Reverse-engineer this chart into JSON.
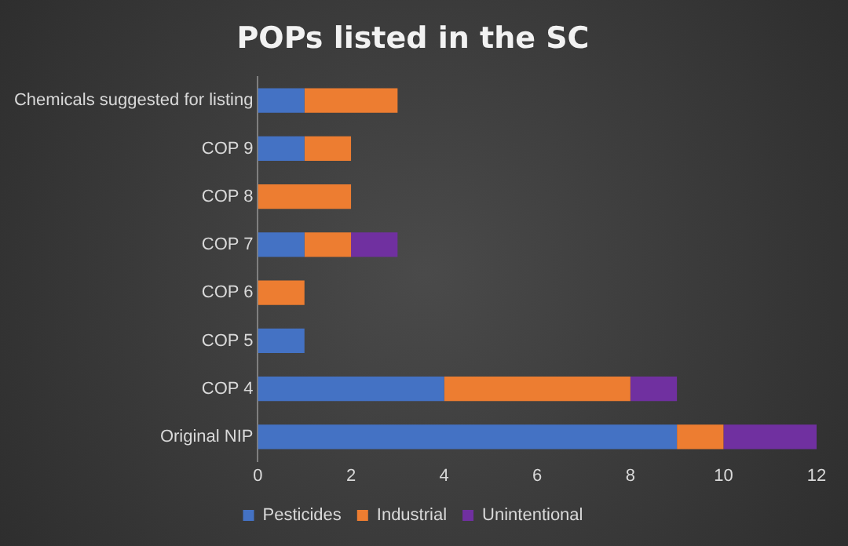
{
  "chart_data": {
    "type": "bar",
    "orientation": "horizontal",
    "stacked": true,
    "title": "POPs listed in the SC",
    "categories": [
      "Chemicals suggested for listing",
      "COP 9",
      "COP 8",
      "COP 7",
      "COP 6",
      "COP 5",
      "COP 4",
      "Original NIP"
    ],
    "series": [
      {
        "name": "Pesticides",
        "color": "#4472c4",
        "values": [
          1,
          1,
          0,
          1,
          0,
          1,
          4,
          9
        ]
      },
      {
        "name": "Industrial",
        "color": "#ed7d31",
        "values": [
          2,
          1,
          2,
          1,
          1,
          0,
          4,
          1
        ]
      },
      {
        "name": "Unintentional",
        "color": "#7030a0",
        "values": [
          0,
          0,
          0,
          1,
          0,
          0,
          1,
          2
        ]
      }
    ],
    "xlim": [
      0,
      12
    ],
    "xticks": [
      0,
      2,
      4,
      6,
      8,
      10,
      12
    ],
    "grid": false,
    "legend": "bottom"
  }
}
